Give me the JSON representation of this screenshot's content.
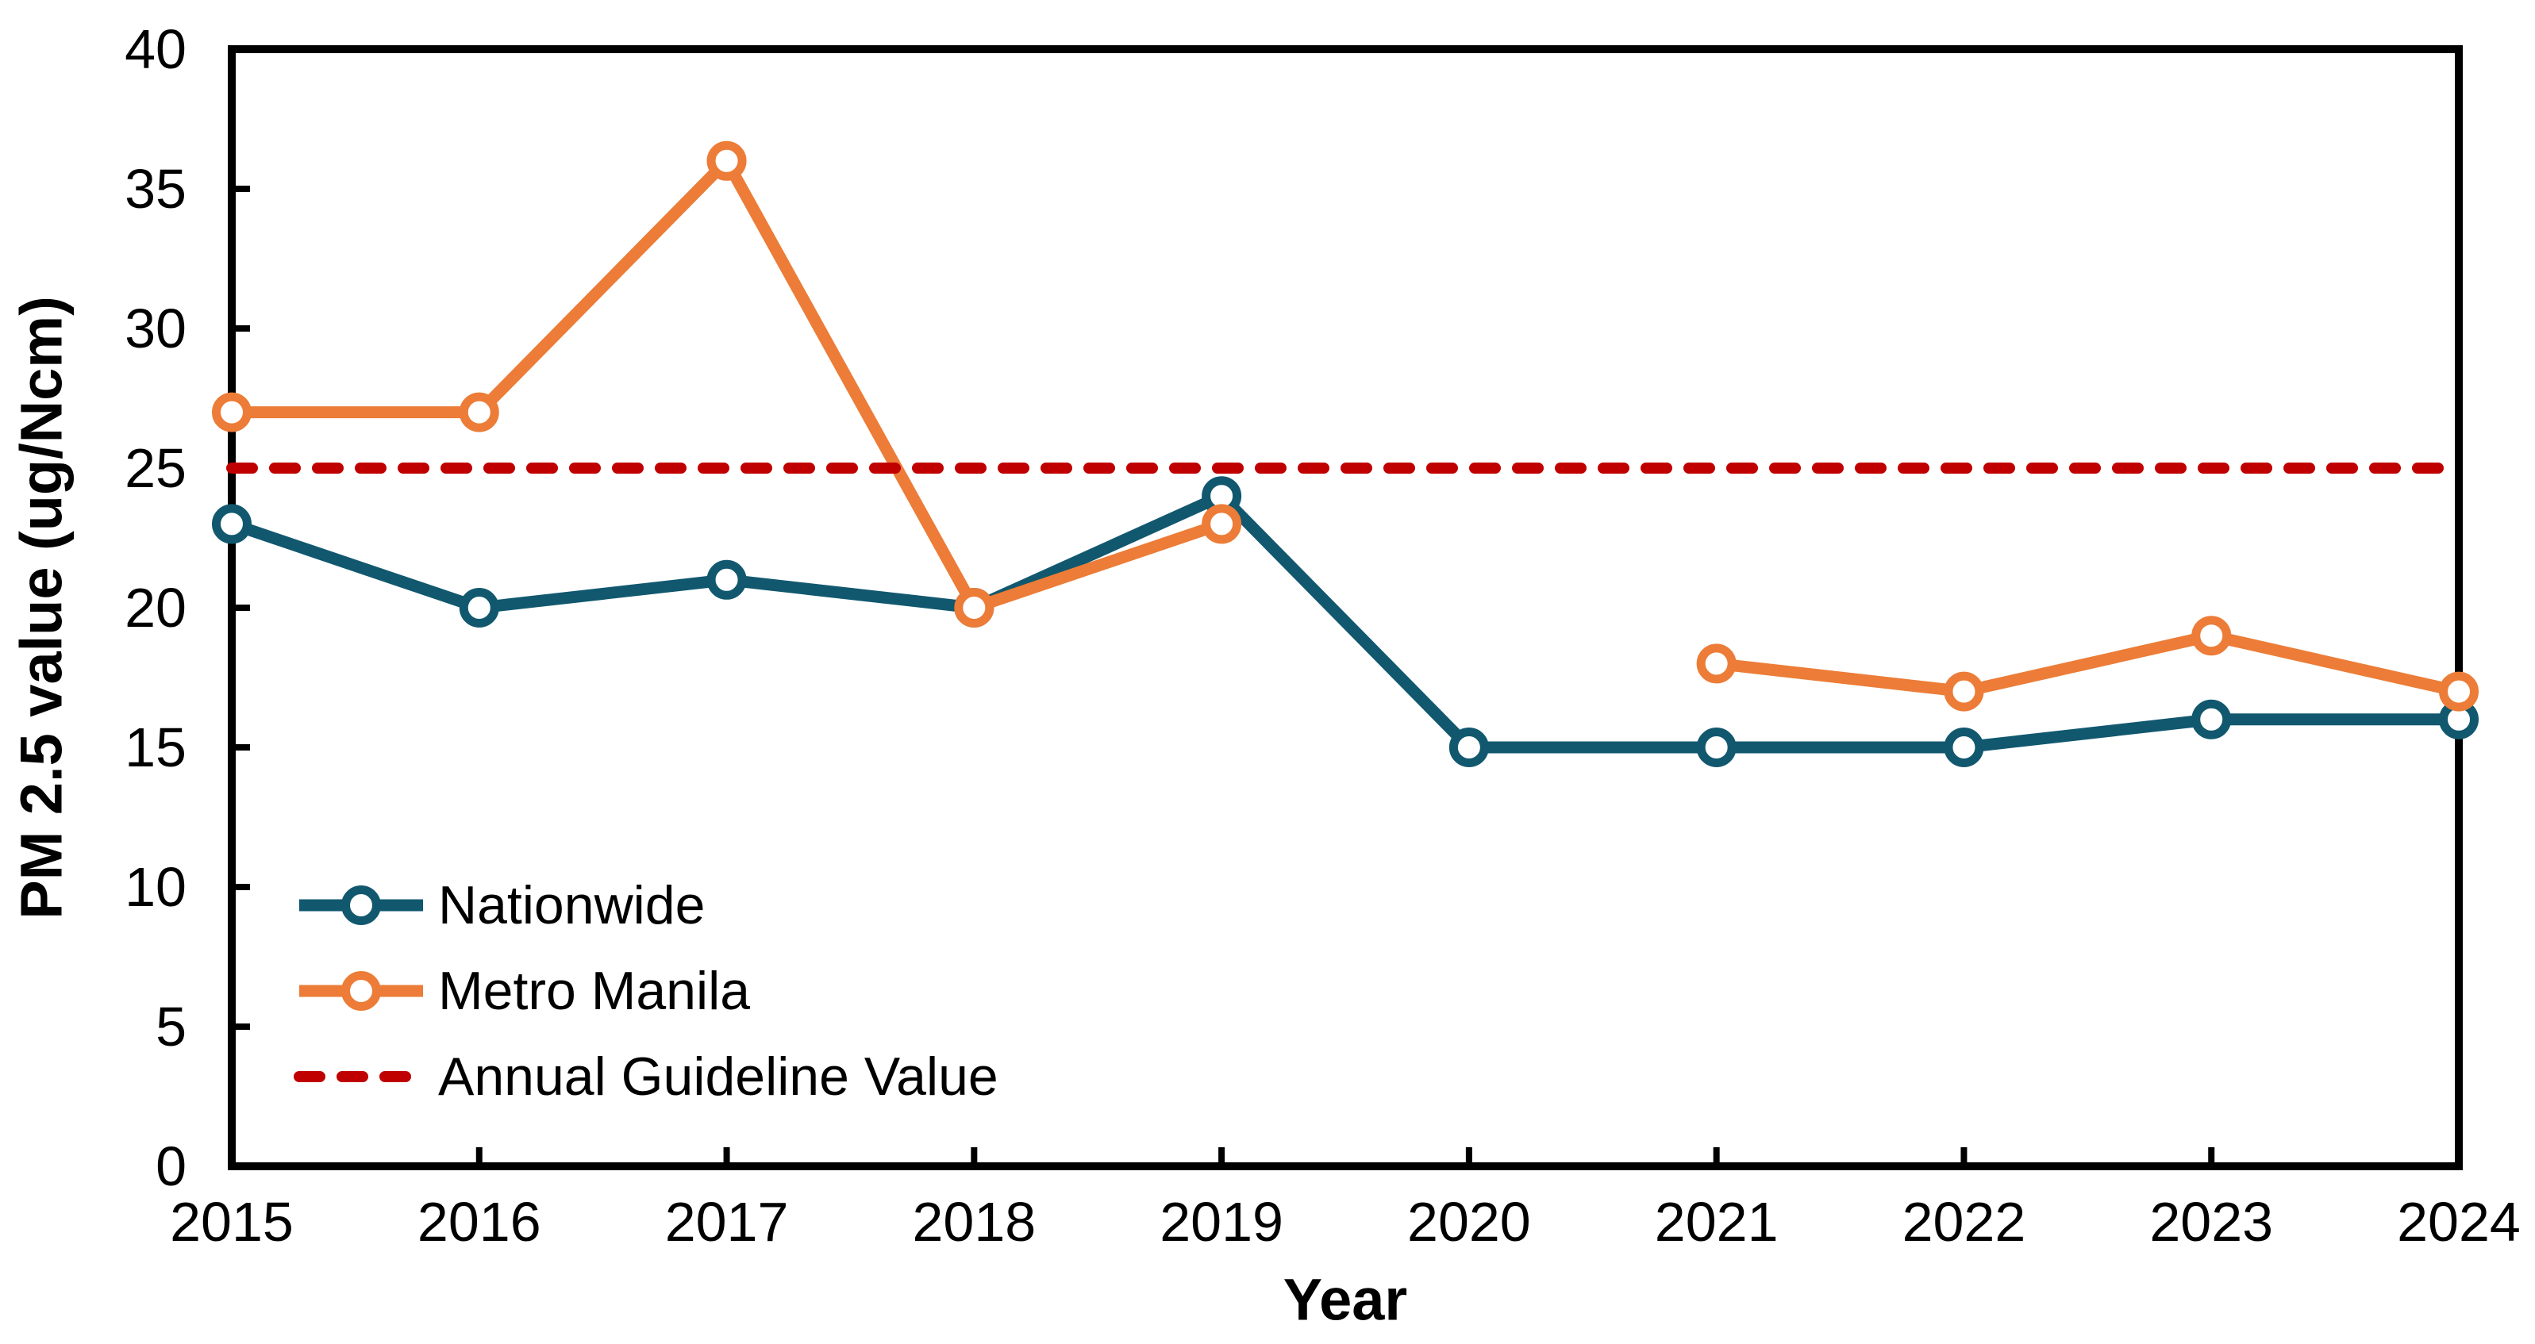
{
  "chart_data": {
    "type": "line",
    "title": "",
    "xlabel": "Year",
    "ylabel": "PM 2.5 value (ug/Ncm)",
    "x": [
      "2015",
      "2016",
      "2017",
      "2018",
      "2019",
      "2020",
      "2021",
      "2022",
      "2023",
      "2024"
    ],
    "ylim": [
      0,
      40
    ],
    "ytick_step": 5,
    "yticks": [
      "0",
      "5",
      "10",
      "15",
      "20",
      "25",
      "30",
      "35",
      "40"
    ],
    "grid": false,
    "legend_position": "inside-lower-left",
    "series": [
      {
        "name": "Nationwide",
        "type": "line-markers",
        "color": "#11586F",
        "values": [
          23,
          20,
          21,
          20,
          24,
          15,
          15,
          15,
          16,
          16
        ]
      },
      {
        "name": "Metro Manila",
        "type": "line-markers",
        "color": "#EC7C37",
        "values": [
          27,
          27,
          36,
          20,
          23,
          null,
          18,
          17,
          19,
          17
        ]
      },
      {
        "name": "Annual Guideline Value",
        "type": "dashed-constant-line",
        "color": "#C00000",
        "value": 25
      }
    ],
    "marker": {
      "shape": "circle",
      "fill": "#ffffff"
    },
    "axis_color": "#000000"
  }
}
